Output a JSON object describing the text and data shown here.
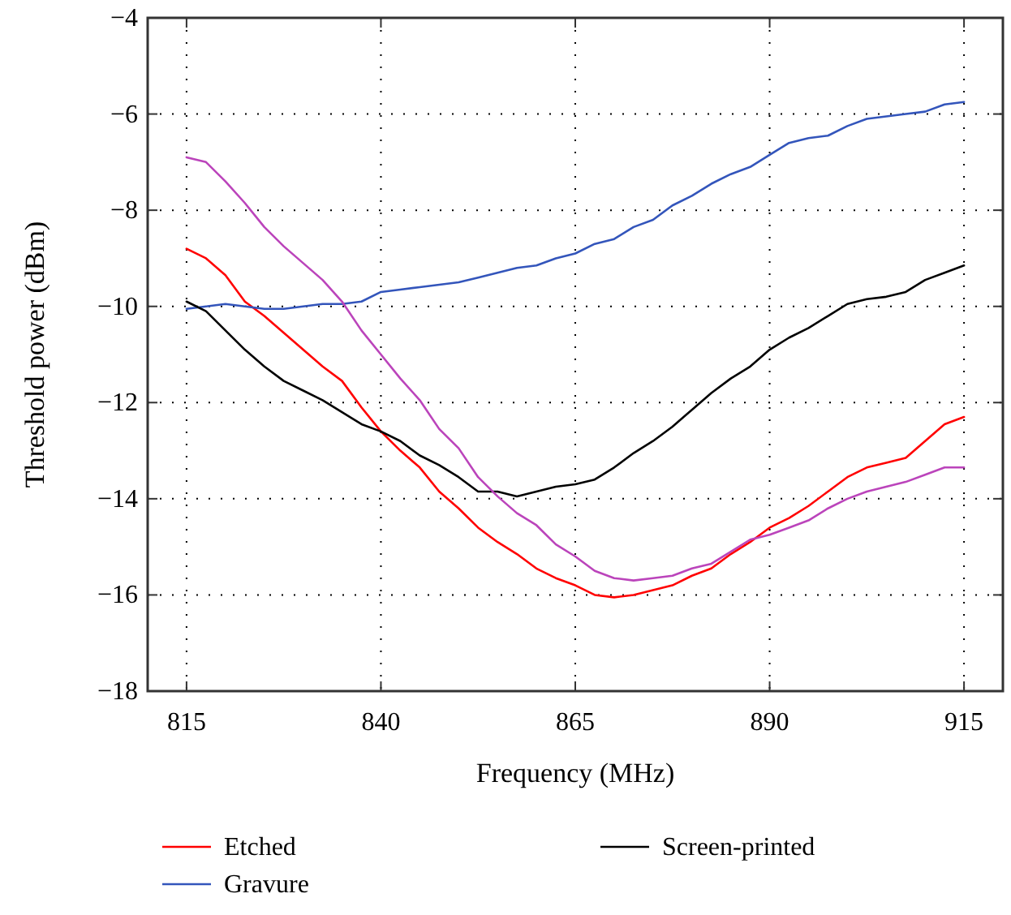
{
  "chart_data": {
    "type": "line",
    "xlabel": "Frequency (MHz)",
    "ylabel": "Threshold power (dBm)",
    "x": [
      815,
      817.5,
      820,
      822.5,
      825,
      827.5,
      830,
      832.5,
      835,
      837.5,
      840,
      842.5,
      845,
      847.5,
      850,
      852.5,
      855,
      857.5,
      860,
      862.5,
      865,
      867.5,
      870,
      872.5,
      875,
      877.5,
      880,
      882.5,
      885,
      887.5,
      890,
      892.5,
      895,
      897.5,
      900,
      902.5,
      905,
      907.5,
      910,
      912.5,
      915
    ],
    "series": [
      {
        "name": "Etched",
        "color": "#ff0000",
        "values": [
          -8.8,
          -9.0,
          -9.35,
          -9.9,
          -10.2,
          -10.55,
          -10.9,
          -11.25,
          -11.55,
          -12.1,
          -12.6,
          -13.0,
          -13.35,
          -13.85,
          -14.2,
          -14.6,
          -14.9,
          -15.15,
          -15.45,
          -15.65,
          -15.8,
          -16.0,
          -16.05,
          -16.0,
          -15.9,
          -15.8,
          -15.6,
          -15.45,
          -15.15,
          -14.9,
          -14.6,
          -14.4,
          -14.15,
          -13.85,
          -13.55,
          -13.35,
          -13.25,
          -13.15,
          -12.8,
          -12.45,
          -12.3
        ]
      },
      {
        "name": "Gravure",
        "color": "#3355bb",
        "values": [
          -10.05,
          -10.0,
          -9.95,
          -10.0,
          -10.05,
          -10.05,
          -10.0,
          -9.95,
          -9.95,
          -9.9,
          -9.7,
          -9.65,
          -9.6,
          -9.55,
          -9.5,
          -9.4,
          -9.3,
          -9.2,
          -9.15,
          -9.0,
          -8.9,
          -8.7,
          -8.6,
          -8.35,
          -8.2,
          -7.9,
          -7.7,
          -7.45,
          -7.25,
          -7.1,
          -6.85,
          -6.6,
          -6.5,
          -6.45,
          -6.25,
          -6.1,
          -6.05,
          -6.0,
          -5.95,
          -5.8,
          -5.75
        ]
      },
      {
        "name": "Screen-printed",
        "color": "#000000",
        "values": [
          -9.9,
          -10.1,
          -10.5,
          -10.9,
          -11.25,
          -11.55,
          -11.75,
          -11.95,
          -12.2,
          -12.45,
          -12.6,
          -12.8,
          -13.1,
          -13.3,
          -13.55,
          -13.85,
          -13.85,
          -13.95,
          -13.85,
          -13.75,
          -13.7,
          -13.6,
          -13.35,
          -13.05,
          -12.8,
          -12.5,
          -12.15,
          -11.8,
          -11.5,
          -11.25,
          -10.9,
          -10.65,
          -10.45,
          -10.2,
          -9.95,
          -9.85,
          -9.8,
          -9.7,
          -9.45,
          -9.3,
          -9.15
        ]
      },
      {
        "color": "#bb44bb",
        "values": [
          -6.9,
          -7.0,
          -7.4,
          -7.85,
          -8.35,
          -8.75,
          -9.1,
          -9.45,
          -9.9,
          -10.5,
          -11.0,
          -11.5,
          -11.95,
          -12.55,
          -12.95,
          -13.55,
          -13.95,
          -14.3,
          -14.55,
          -14.95,
          -15.2,
          -15.5,
          -15.65,
          -15.7,
          -15.65,
          -15.6,
          -15.45,
          -15.35,
          -15.1,
          -14.85,
          -14.75,
          -14.6,
          -14.45,
          -14.2,
          -14.0,
          -13.85,
          -13.75,
          -13.65,
          -13.5,
          -13.35,
          -13.35
        ]
      }
    ],
    "xlim": [
      810,
      920
    ],
    "xticks": [
      815,
      840,
      865,
      890,
      915
    ],
    "ylim": [
      -18,
      -4
    ],
    "yticks": [
      -18,
      -16,
      -14,
      -12,
      -10,
      -8,
      -6,
      -4
    ],
    "grid": true,
    "line_style": "solid",
    "marker": "none",
    "legend": "bottom"
  }
}
